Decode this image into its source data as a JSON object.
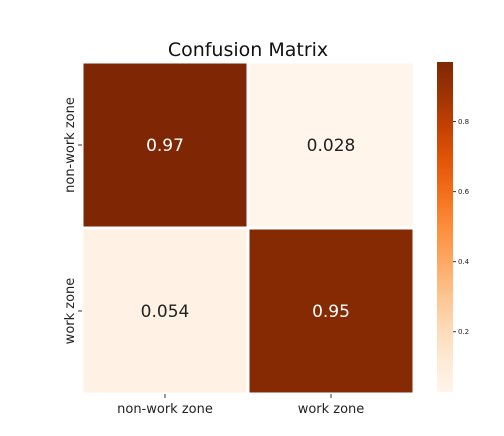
{
  "chart_data": {
    "type": "heatmap",
    "title": "Confusion Matrix",
    "row_labels": [
      "non-work zone",
      "work zone"
    ],
    "col_labels": [
      "non-work zone",
      "work zone"
    ],
    "values": [
      [
        0.97,
        0.028
      ],
      [
        0.054,
        0.95
      ]
    ],
    "cell_text": [
      [
        "0.97",
        "0.028"
      ],
      [
        "0.054",
        "0.95"
      ]
    ],
    "colormap": "Oranges",
    "vmin": 0.028,
    "vmax": 0.97,
    "colorbar_ticks": [
      0.2,
      0.4,
      0.6,
      0.8
    ],
    "colorbar_tick_labels": [
      "0.2",
      "0.4",
      "0.6",
      "0.8"
    ],
    "colors": {
      "low": "#fff5eb",
      "high": "#7f2704",
      "cell_border": "#ffffff"
    }
  }
}
